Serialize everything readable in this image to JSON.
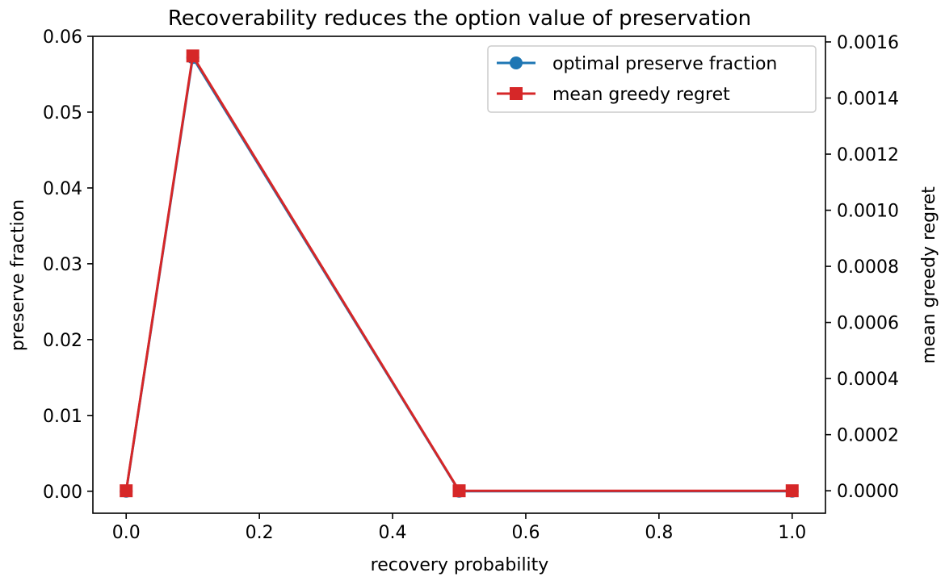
{
  "chart_data": {
    "type": "line",
    "title": "Recoverability reduces the option value of preservation",
    "xlabel": "recovery probability",
    "ylabel_left": "preserve fraction",
    "ylabel_right": "mean greedy regret",
    "x": [
      0.0,
      0.1,
      0.5,
      1.0
    ],
    "xlim": [
      -0.05,
      1.05
    ],
    "ylim_left": [
      -0.0029,
      0.06
    ],
    "ylim_right": [
      -8e-05,
      0.00162
    ],
    "x_ticks": [
      "0.0",
      "0.2",
      "0.4",
      "0.6",
      "0.8",
      "1.0"
    ],
    "x_tick_values": [
      0.0,
      0.2,
      0.4,
      0.6,
      0.8,
      1.0
    ],
    "y_left_ticks": [
      "0.00",
      "0.01",
      "0.02",
      "0.03",
      "0.04",
      "0.05",
      "0.06"
    ],
    "y_left_tick_values": [
      0.0,
      0.01,
      0.02,
      0.03,
      0.04,
      0.05,
      0.06
    ],
    "y_right_ticks": [
      "0.0000",
      "0.0002",
      "0.0004",
      "0.0006",
      "0.0008",
      "0.0010",
      "0.0012",
      "0.0014",
      "0.0016"
    ],
    "y_right_tick_values": [
      0.0,
      0.0002,
      0.0004,
      0.0006,
      0.0008,
      0.001,
      0.0012,
      0.0014,
      0.0016
    ],
    "grid": false,
    "legend_position": "top-right",
    "series": [
      {
        "name": "optimal preserve fraction",
        "axis": "left",
        "marker": "circle",
        "color": "#1f77b4",
        "values": [
          0.0,
          0.0572,
          0.0,
          0.0
        ]
      },
      {
        "name": "mean greedy regret",
        "axis": "right",
        "marker": "square",
        "color": "#d62728",
        "values": [
          0.0,
          0.00155,
          0.0,
          0.0
        ]
      }
    ]
  }
}
